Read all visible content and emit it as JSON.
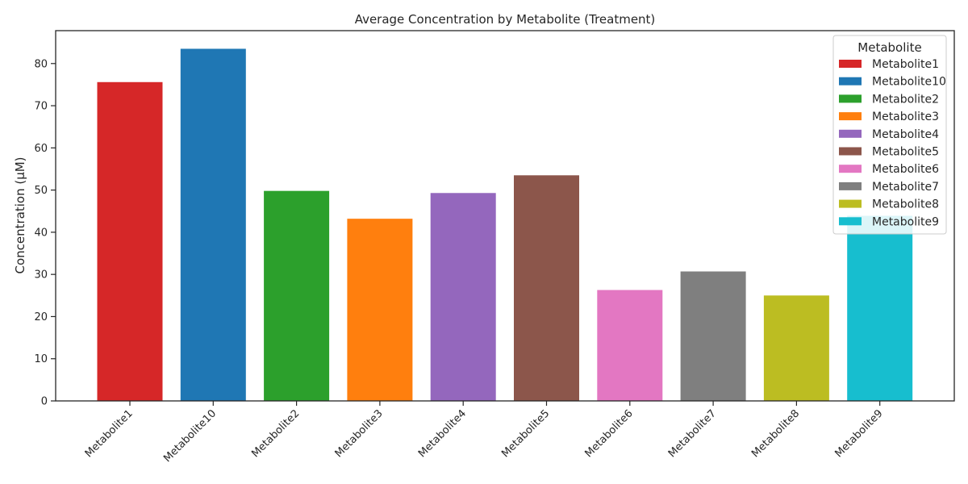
{
  "chart_data": {
    "type": "bar",
    "title": "Average Concentration by Metabolite (Treatment)",
    "xlabel": "",
    "ylabel": "Concentration (μM)",
    "ylim": [
      0,
      87.8
    ],
    "yticks": [
      0,
      10,
      20,
      30,
      40,
      50,
      60,
      70,
      80
    ],
    "categories": [
      "Metabolite1",
      "Metabolite10",
      "Metabolite2",
      "Metabolite3",
      "Metabolite4",
      "Metabolite5",
      "Metabolite6",
      "Metabolite7",
      "Metabolite8",
      "Metabolite9"
    ],
    "values": [
      75.6,
      83.5,
      49.8,
      43.2,
      49.3,
      53.5,
      26.3,
      30.7,
      25.0,
      43.9
    ],
    "colors": [
      "#d62728",
      "#1f77b4",
      "#2ca02c",
      "#ff7f0e",
      "#9467bd",
      "#8c564b",
      "#e377c2",
      "#7f7f7f",
      "#bcbd22",
      "#17becf"
    ],
    "legend": {
      "title": "Metabolite",
      "placement": "top-right",
      "entries": [
        "Metabolite1",
        "Metabolite10",
        "Metabolite2",
        "Metabolite3",
        "Metabolite4",
        "Metabolite5",
        "Metabolite6",
        "Metabolite7",
        "Metabolite8",
        "Metabolite9"
      ]
    },
    "grid": false,
    "xtick_rotation": 45
  }
}
